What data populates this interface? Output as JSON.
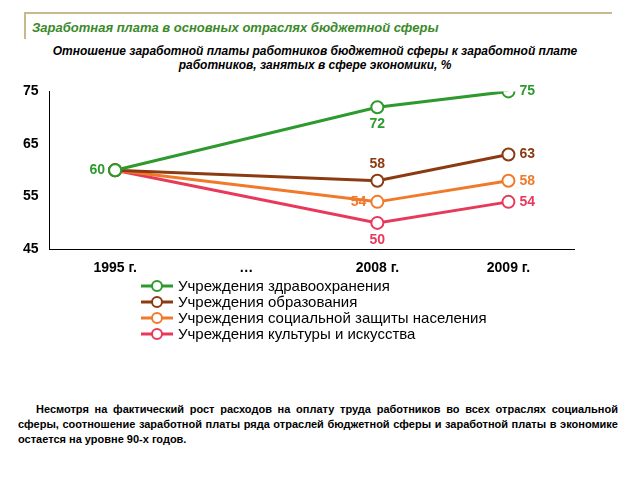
{
  "header": "Заработная плата в основных отраслях бюджетной сферы",
  "chart_data": {
    "type": "line",
    "title": "Отношение заработной платы работников бюджетной сферы к заработной плате работников, занятых в сфере экономики, %",
    "categories": [
      "1995 г.",
      "…",
      "2008 г.",
      "2009 г."
    ],
    "series": [
      {
        "name": "Учреждения здравоохранения",
        "color": "#2e9a2e",
        "values": [
          60,
          null,
          72,
          75
        ]
      },
      {
        "name": "Учреждения образования",
        "color": "#8b3a12",
        "values": [
          60,
          null,
          58,
          63
        ]
      },
      {
        "name": "Учреждения социальной защиты населения",
        "color": "#f07a2a",
        "values": [
          60,
          null,
          54,
          58
        ]
      },
      {
        "name": "Учреждения культуры и искусства",
        "color": "#e8395a",
        "values": [
          60,
          null,
          50,
          54
        ]
      }
    ],
    "ylim": [
      45,
      75
    ],
    "yticks": [
      45,
      55,
      65,
      75
    ],
    "grid": false,
    "legend": "bottom",
    "data_labels": true,
    "marker": "circle"
  },
  "footer": "Несмотря на фактический рост расходов на оплату труда работников во всех отраслях социальной сферы, соотношение заработной платы ряда отраслей бюджетной сферы и заработной платы в экономике остается на уровне 90-х годов."
}
